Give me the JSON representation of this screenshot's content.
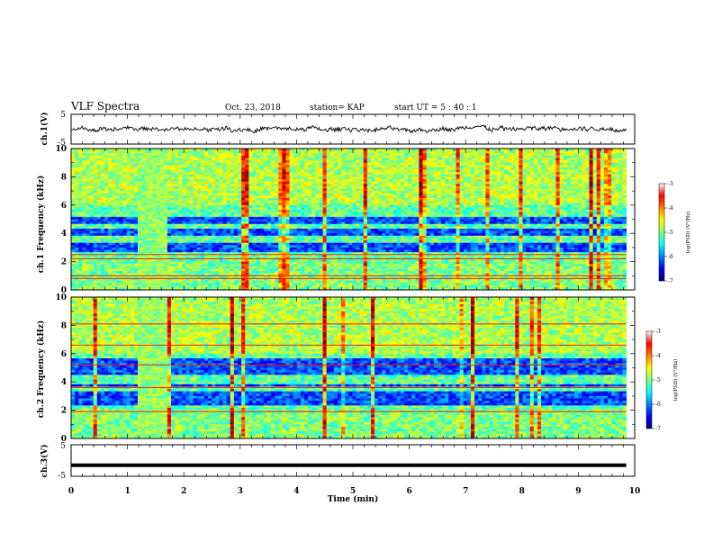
{
  "header": {
    "title": "VLF Spectra",
    "date": "Oct. 23, 2018",
    "station": "station= KAP",
    "start_ut": "start  UT  =   5  : 40 : 1"
  },
  "colorbar": {
    "label": "log(PSD) (V²/Hz)",
    "ticks": [
      "-3",
      "-4",
      "-5",
      "-6",
      "-7"
    ],
    "range": [
      -7,
      -3
    ],
    "colormap": "jet"
  },
  "chart_data": [
    {
      "type": "line",
      "panel": "ch1-waveform",
      "ylabel": "ch.1(V)",
      "ylim": [
        -5,
        5
      ],
      "y_ticks": [
        "5",
        "-5"
      ],
      "xlim": [
        0,
        10
      ],
      "description_values": {
        "mean": 0,
        "approx_range": [
          -1.5,
          1.5
        ]
      },
      "color": "#000000"
    },
    {
      "type": "heatmap",
      "panel": "ch1-spectrogram",
      "ylabel": "ch.1  Frequency (kHz)",
      "ylim": [
        0,
        10
      ],
      "y_ticks": [
        "10",
        "8",
        "6",
        "4",
        "2",
        "0"
      ],
      "xlim": [
        0,
        10
      ],
      "x_extent_min": [
        0,
        9.85
      ],
      "interference_burst_min": [
        1.2,
        1.7
      ],
      "low_power_bands_khz": [
        [
          2.6,
          3.4
        ],
        [
          3.9,
          4.3
        ],
        [
          4.6,
          5.1
        ]
      ],
      "emission_lines_khz": [
        0.8,
        1.0,
        2.2,
        2.5
      ]
    },
    {
      "type": "heatmap",
      "panel": "ch2-spectrogram",
      "ylabel": "ch.2  Frequency (kHz)",
      "ylim": [
        0,
        10
      ],
      "y_ticks": [
        "10",
        "8",
        "6",
        "4",
        "2",
        "0"
      ],
      "xlim": [
        0,
        10
      ],
      "x_extent_min": [
        0,
        9.85
      ],
      "interference_burst_min": [
        1.2,
        1.7
      ],
      "low_power_bands_khz": [
        [
          2.4,
          3.3
        ],
        [
          3.6,
          3.9
        ],
        [
          4.5,
          5.6
        ]
      ],
      "emission_lines_khz": [
        1.9,
        3.6,
        5.2,
        6.6,
        8.1
      ]
    },
    {
      "type": "line",
      "panel": "ch3-waveform",
      "ylabel": "ch.3(V)",
      "ylim": [
        -5,
        5
      ],
      "y_ticks": [
        "5",
        "-5"
      ],
      "xlim": [
        0,
        10
      ],
      "x": [
        0,
        9.85
      ],
      "y": [
        -1.5,
        -1.5
      ],
      "color": "#000000"
    }
  ],
  "x_axis": {
    "label": "Time  (min)",
    "ticks": [
      "0",
      "1",
      "2",
      "3",
      "4",
      "5",
      "6",
      "7",
      "8",
      "9",
      "10"
    ],
    "range": [
      0,
      10
    ]
  }
}
